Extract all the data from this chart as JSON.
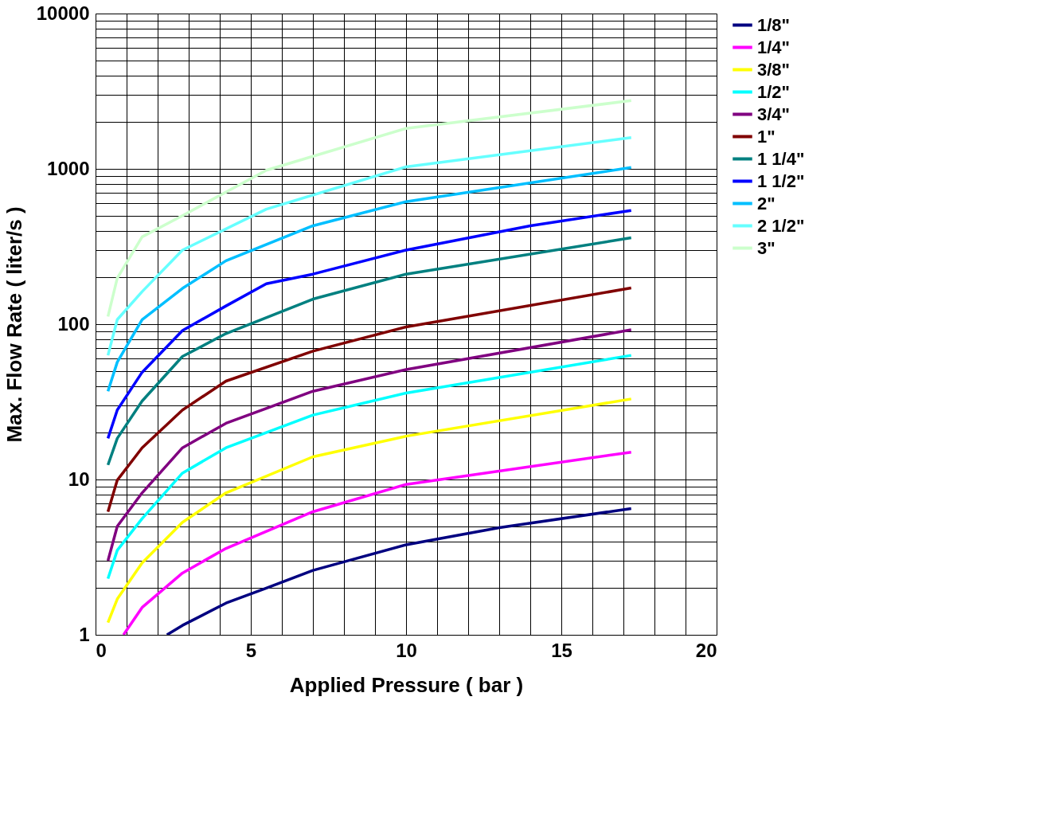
{
  "chart_data": {
    "type": "line",
    "xlabel": "Applied Pressure ( bar )",
    "ylabel": "Max. Flow Rate ( liter/s )",
    "log": "y",
    "grid": true,
    "legend": "right",
    "line_style": "solid",
    "marker": "none",
    "xlim": [
      0,
      20
    ],
    "ylim": [
      1,
      10000
    ],
    "xticks": [
      0,
      {
        "value": 1,
        "label": null
      },
      {
        "value": 2,
        "label": null
      },
      {
        "value": 3,
        "label": null
      },
      {
        "value": 4,
        "label": null
      },
      5,
      {
        "value": 6,
        "label": null
      },
      {
        "value": 7,
        "label": null
      },
      {
        "value": 8,
        "label": null
      },
      {
        "value": 9,
        "label": null
      },
      10,
      {
        "value": 11,
        "label": null
      },
      {
        "value": 12,
        "label": null
      },
      {
        "value": 13,
        "label": null
      },
      {
        "value": 14,
        "label": null
      },
      15,
      {
        "value": 16,
        "label": null
      },
      {
        "value": 17,
        "label": null
      },
      {
        "value": 18,
        "label": null
      },
      {
        "value": 19,
        "label": null
      },
      20
    ],
    "yticks": [
      1,
      {
        "value": 2,
        "label": null
      },
      {
        "value": 3,
        "label": null
      },
      {
        "value": 4,
        "label": null
      },
      {
        "value": 5,
        "label": null
      },
      {
        "value": 6,
        "label": null
      },
      {
        "value": 7,
        "label": null
      },
      {
        "value": 8,
        "label": null
      },
      {
        "value": 9,
        "label": null
      },
      10,
      {
        "value": 20,
        "label": null
      },
      {
        "value": 30,
        "label": null
      },
      {
        "value": 40,
        "label": null
      },
      {
        "value": 50,
        "label": null
      },
      {
        "value": 60,
        "label": null
      },
      {
        "value": 70,
        "label": null
      },
      {
        "value": 80,
        "label": null
      },
      {
        "value": 90,
        "label": null
      },
      100,
      {
        "value": 200,
        "label": null
      },
      {
        "value": 300,
        "label": null
      },
      {
        "value": 400,
        "label": null
      },
      {
        "value": 500,
        "label": null
      },
      {
        "value": 600,
        "label": null
      },
      {
        "value": 700,
        "label": null
      },
      {
        "value": 800,
        "label": null
      },
      {
        "value": 900,
        "label": null
      },
      1000,
      {
        "value": 2000,
        "label": null
      },
      {
        "value": 3000,
        "label": null
      },
      {
        "value": 4000,
        "label": null
      },
      {
        "value": 5000,
        "label": null
      },
      {
        "value": 6000,
        "label": null
      },
      {
        "value": 7000,
        "label": null
      },
      {
        "value": 8000,
        "label": null
      },
      {
        "value": 9000,
        "label": null
      },
      10000
    ],
    "series": [
      {
        "name": "1/8\"",
        "color": "#000080",
        "x": [
          2.3,
          2.8,
          4.2,
          5.5,
          7,
          10,
          13,
          17.25
        ],
        "values": [
          1.0,
          1.15,
          1.6,
          2.0,
          2.6,
          3.8,
          4.9,
          6.5
        ]
      },
      {
        "name": "1/4\"",
        "color": "#ff00ff",
        "x": [
          0.9,
          1.5,
          2.8,
          4.2,
          7,
          10,
          17.25
        ],
        "values": [
          1.0,
          1.5,
          2.5,
          3.6,
          6.2,
          9.3,
          15
        ]
      },
      {
        "name": "3/8\"",
        "color": "#ffff00",
        "x": [
          0.4,
          0.7,
          1.5,
          2.8,
          4.2,
          7,
          10,
          17.25
        ],
        "values": [
          1.2,
          1.7,
          2.9,
          5.3,
          8.2,
          14,
          19,
          33
        ]
      },
      {
        "name": "1/2\"",
        "color": "#00ffff",
        "x": [
          0.4,
          0.7,
          1.5,
          2.8,
          4.2,
          7,
          10,
          17.25
        ],
        "values": [
          2.3,
          3.5,
          5.6,
          11,
          16,
          26,
          36,
          63
        ]
      },
      {
        "name": "3/4\"",
        "color": "#800080",
        "x": [
          0.4,
          0.7,
          1.5,
          2.8,
          4.2,
          7,
          10,
          17.25
        ],
        "values": [
          3.0,
          5.0,
          8.2,
          16,
          23,
          37,
          51,
          92
        ]
      },
      {
        "name": "1\"",
        "color": "#800000",
        "x": [
          0.4,
          0.7,
          1.5,
          2.8,
          4.2,
          7,
          10,
          17.25
        ],
        "values": [
          6.2,
          9.9,
          16,
          28,
          43,
          67,
          96,
          171
        ]
      },
      {
        "name": "1 1/4\"",
        "color": "#008080",
        "x": [
          0.4,
          0.7,
          1.5,
          2.8,
          4.2,
          7,
          10,
          17.25
        ],
        "values": [
          12.4,
          18.4,
          32,
          62,
          87,
          145,
          210,
          360
        ]
      },
      {
        "name": "1 1/2\"",
        "color": "#0000ff",
        "x": [
          0.4,
          0.7,
          1.5,
          2.8,
          4.2,
          5.5,
          7,
          10,
          14,
          17.25
        ],
        "values": [
          18.4,
          28,
          49,
          91,
          131,
          182,
          210,
          300,
          430,
          540
        ]
      },
      {
        "name": "2\"",
        "color": "#00bfff",
        "x": [
          0.4,
          0.7,
          1.5,
          2.8,
          4.2,
          7,
          10,
          17.25
        ],
        "values": [
          37,
          57,
          107,
          170,
          256,
          430,
          615,
          1020
        ]
      },
      {
        "name": "2 1/2\"",
        "color": "#66ffff",
        "x": [
          0.4,
          0.7,
          1.5,
          2.8,
          5.5,
          10,
          17.25
        ],
        "values": [
          63,
          107,
          162,
          300,
          550,
          1030,
          1590
        ]
      },
      {
        "name": "3\"",
        "color": "#ccffcc",
        "x": [
          0.4,
          0.7,
          1.5,
          2.8,
          5.5,
          10,
          17.25
        ],
        "values": [
          112,
          198,
          365,
          500,
          980,
          1820,
          2750
        ]
      }
    ]
  }
}
